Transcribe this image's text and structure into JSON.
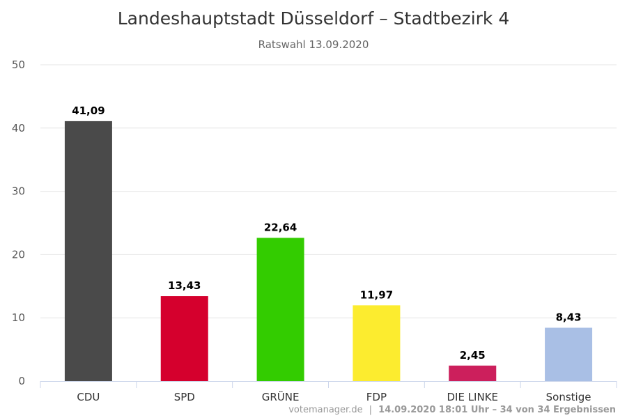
{
  "chart_data": {
    "type": "bar",
    "title": "Landeshauptstadt Düsseldorf – Stadtbezirk 4",
    "subtitle": "Ratswahl 13.09.2020",
    "categories": [
      "CDU",
      "SPD",
      "GRÜNE",
      "FDP",
      "DIE LINKE",
      "Sonstige"
    ],
    "values": [
      41.09,
      13.43,
      22.64,
      11.97,
      2.45,
      8.43
    ],
    "value_labels": [
      "41,09",
      "13,43",
      "22,64",
      "11,97",
      "2,45",
      "8,43"
    ],
    "colors": [
      "#4a4a4a",
      "#d5002d",
      "#33cc00",
      "#fcec2f",
      "#cc1f5c",
      "#a9bfe5"
    ],
    "ylim": [
      0,
      50
    ],
    "yticks": [
      "0",
      "10",
      "20",
      "30",
      "40",
      "50"
    ],
    "grid": true,
    "legend": "none"
  },
  "credits": {
    "source": "votemanager.de",
    "separator": "|",
    "stamp": "14.09.2020 18:01 Uhr – 34 von 34 Ergebnissen"
  }
}
